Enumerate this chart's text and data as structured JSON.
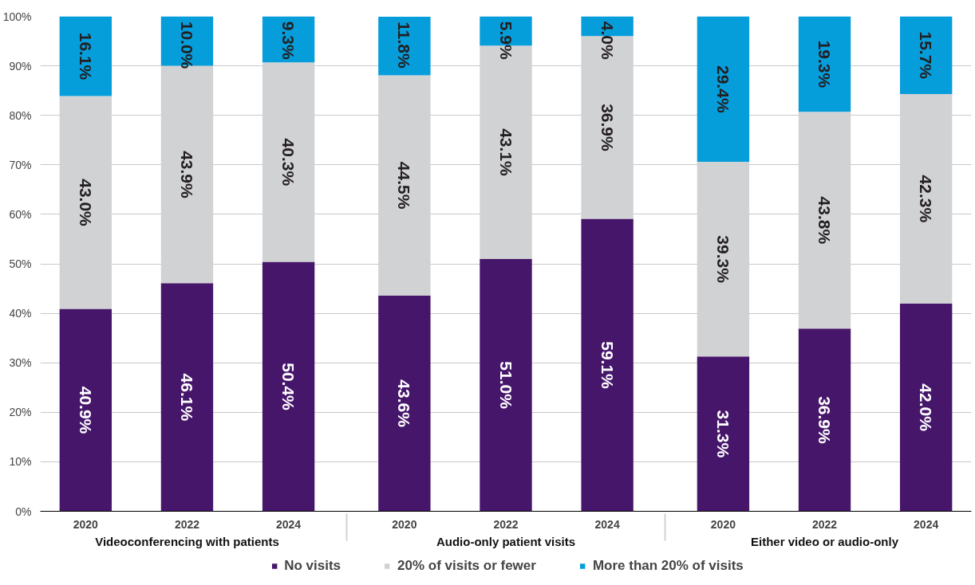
{
  "chart_data": {
    "type": "bar",
    "stacked": true,
    "categories": [
      "2020",
      "2022",
      "2024",
      "2020",
      "2022",
      "2024",
      "2020",
      "2022",
      "2024"
    ],
    "annotations": [
      "Videoconferencing with patients",
      "Audio-only patient visits",
      "Either video or audio-only"
    ],
    "series": [
      {
        "name": "No visits",
        "color": "#46166b",
        "values": [
          40.9,
          46.1,
          50.4,
          43.6,
          51.0,
          59.1,
          31.3,
          36.9,
          42.0
        ],
        "value_labels": [
          "40.9%",
          "46.1%",
          "50.4%",
          "43.6%",
          "51.0%",
          "59.1%",
          "31.3%",
          "36.9%",
          "42.0%"
        ]
      },
      {
        "name": "20% of visits or fewer",
        "color": "#d1d2d4",
        "values": [
          43.0,
          43.9,
          40.3,
          44.5,
          43.1,
          36.9,
          39.3,
          43.8,
          42.3
        ],
        "value_labels": [
          "43.0%",
          "43.9%",
          "40.3%",
          "44.5%",
          "43.1%",
          "36.9%",
          "39.3%",
          "43.8%",
          "42.3%"
        ]
      },
      {
        "name": "More than 20% of visits",
        "color": "#069ddb",
        "values": [
          16.1,
          10.0,
          9.3,
          11.8,
          5.9,
          4.0,
          29.4,
          19.3,
          15.7
        ],
        "value_labels": [
          "16.1%",
          "10.0%",
          "9.3%",
          "11.8%",
          "5.9%",
          "4.0%",
          "29.4%",
          "19.3%",
          "15.7%"
        ]
      }
    ],
    "ylim": [
      0,
      100
    ],
    "yticks": [
      {
        "value": 0,
        "label": "0%"
      },
      {
        "value": 10,
        "label": "10%"
      },
      {
        "value": 20,
        "label": "20%"
      },
      {
        "value": 30,
        "label": "30%"
      },
      {
        "value": 40,
        "label": "40%"
      },
      {
        "value": 50,
        "label": "50%"
      },
      {
        "value": 60,
        "label": "60%"
      },
      {
        "value": 70,
        "label": "70%"
      },
      {
        "value": 80,
        "label": "80%"
      },
      {
        "value": 90,
        "label": "90%"
      },
      {
        "value": 100,
        "label": "100%"
      }
    ],
    "grid": "y",
    "legend": "bottom"
  }
}
